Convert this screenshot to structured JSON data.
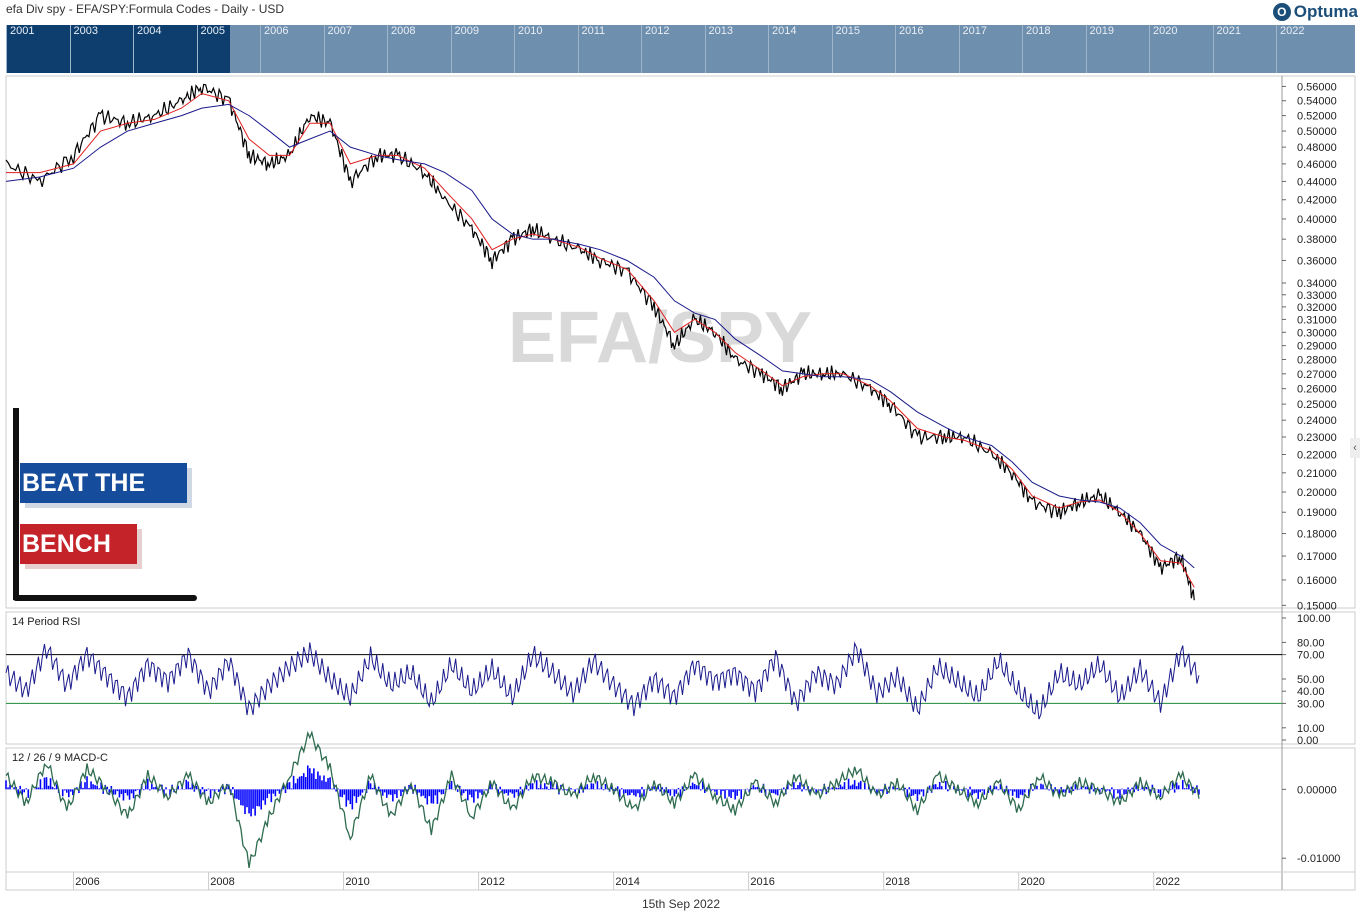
{
  "header": {
    "title": "efa Div spy -   EFA/SPY:Formula Codes - Daily - USD"
  },
  "logo": {
    "text": "Optuma",
    "glyph": "O"
  },
  "navigator": {
    "years": [
      "2001",
      "2003",
      "2004",
      "2005",
      "2006",
      "2007",
      "2008",
      "2009",
      "2010",
      "2011",
      "2012",
      "2013",
      "2014",
      "2015",
      "2016",
      "2017",
      "2018",
      "2019",
      "2020",
      "2021",
      "2022"
    ]
  },
  "watermark": "EFA/SPY",
  "branding": {
    "line1": "BEAT THE",
    "line2": "BENCH"
  },
  "footer_date": "15th Sep 2022",
  "colors": {
    "price": "#000000",
    "ma_fast": "#e02020",
    "ma_slow": "#1a1a8c",
    "rsi": "#1a1a8c",
    "macd_hist": "#0000ff",
    "macd_line": "#2e6b4f",
    "navigator_selected": "#0d3e6e",
    "navigator_bg": "#6f8fae"
  },
  "chart_data": [
    {
      "type": "line",
      "title": "EFA/SPY",
      "scale": "log",
      "ylim": [
        0.15,
        0.57
      ],
      "y_ticks": [
        "0.56000",
        "0.54000",
        "0.52000",
        "0.50000",
        "0.48000",
        "0.46000",
        "0.44000",
        "0.42000",
        "0.40000",
        "0.38000",
        "0.36000",
        "0.34000",
        "0.33000",
        "0.32000",
        "0.31000",
        "0.30000",
        "0.29000",
        "0.28000",
        "0.27000",
        "0.26000",
        "0.25000",
        "0.24000",
        "0.23000",
        "0.22000",
        "0.21000",
        "0.20000",
        "0.19000",
        "0.18000",
        "0.17000",
        "0.16000",
        "0.15000"
      ],
      "x": [
        2005.0,
        2005.5,
        2006.0,
        2006.4,
        2006.8,
        2007.2,
        2007.6,
        2007.9,
        2008.3,
        2008.6,
        2008.9,
        2009.2,
        2009.5,
        2009.8,
        2010.1,
        2010.5,
        2010.8,
        2011.2,
        2011.5,
        2011.9,
        2012.2,
        2012.5,
        2012.8,
        2013.1,
        2013.5,
        2013.8,
        2014.2,
        2014.6,
        2014.9,
        2015.2,
        2015.5,
        2015.8,
        2016.2,
        2016.5,
        2016.8,
        2017.1,
        2017.4,
        2017.8,
        2018.1,
        2018.5,
        2018.9,
        2019.2,
        2019.6,
        2019.9,
        2020.2,
        2020.6,
        2020.9,
        2021.2,
        2021.5,
        2021.8,
        2022.1,
        2022.4,
        2022.6
      ],
      "series": [
        {
          "name": "",
          "values": [
            0.46,
            0.44,
            0.47,
            0.52,
            0.51,
            0.52,
            0.54,
            0.56,
            0.54,
            0.47,
            0.46,
            0.47,
            0.52,
            0.51,
            0.44,
            0.47,
            0.47,
            0.45,
            0.42,
            0.39,
            0.36,
            0.38,
            0.39,
            0.38,
            0.37,
            0.36,
            0.35,
            0.32,
            0.29,
            0.31,
            0.3,
            0.28,
            0.27,
            0.26,
            0.27,
            0.27,
            0.27,
            0.26,
            0.25,
            0.23,
            0.23,
            0.23,
            0.22,
            0.21,
            0.195,
            0.19,
            0.195,
            0.198,
            0.19,
            0.18,
            0.165,
            0.17,
            0.152
          ]
        },
        {
          "name": "",
          "values": [
            0.45,
            0.45,
            0.46,
            0.5,
            0.51,
            0.515,
            0.53,
            0.55,
            0.54,
            0.49,
            0.47,
            0.47,
            0.51,
            0.51,
            0.46,
            0.47,
            0.47,
            0.455,
            0.43,
            0.4,
            0.37,
            0.38,
            0.385,
            0.38,
            0.372,
            0.362,
            0.352,
            0.325,
            0.3,
            0.31,
            0.3,
            0.285,
            0.272,
            0.262,
            0.268,
            0.27,
            0.27,
            0.262,
            0.252,
            0.235,
            0.23,
            0.228,
            0.222,
            0.212,
            0.198,
            0.192,
            0.195,
            0.196,
            0.19,
            0.18,
            0.168,
            0.167,
            0.157
          ]
        },
        {
          "name": "",
          "values": [
            0.44,
            0.445,
            0.455,
            0.48,
            0.5,
            0.51,
            0.52,
            0.53,
            0.535,
            0.52,
            0.5,
            0.48,
            0.49,
            0.5,
            0.48,
            0.47,
            0.465,
            0.46,
            0.45,
            0.43,
            0.4,
            0.385,
            0.38,
            0.38,
            0.375,
            0.37,
            0.36,
            0.345,
            0.325,
            0.315,
            0.31,
            0.295,
            0.282,
            0.272,
            0.27,
            0.268,
            0.268,
            0.266,
            0.258,
            0.245,
            0.236,
            0.23,
            0.225,
            0.216,
            0.205,
            0.198,
            0.196,
            0.195,
            0.192,
            0.185,
            0.175,
            0.17,
            0.165
          ]
        }
      ]
    },
    {
      "type": "line",
      "title": "14 Period RSI",
      "ylim": [
        0,
        100
      ],
      "y_ticks": [
        "100.00",
        "80.00",
        "70.00",
        "50.00",
        "40.00",
        "30.00",
        "10.00",
        "0.00"
      ],
      "levels": [
        70,
        30
      ],
      "x": [
        2005.0,
        2005.3,
        2005.6,
        2005.9,
        2006.2,
        2006.5,
        2006.8,
        2007.1,
        2007.4,
        2007.7,
        2008.0,
        2008.3,
        2008.6,
        2008.9,
        2009.2,
        2009.5,
        2009.8,
        2010.1,
        2010.4,
        2010.7,
        2011.0,
        2011.3,
        2011.6,
        2011.9,
        2012.2,
        2012.5,
        2012.8,
        2013.1,
        2013.4,
        2013.7,
        2014.0,
        2014.3,
        2014.6,
        2014.9,
        2015.2,
        2015.5,
        2015.8,
        2016.1,
        2016.4,
        2016.7,
        2017.0,
        2017.3,
        2017.6,
        2017.9,
        2018.2,
        2018.5,
        2018.8,
        2019.1,
        2019.4,
        2019.7,
        2020.0,
        2020.3,
        2020.6,
        2020.9,
        2021.2,
        2021.5,
        2021.8,
        2022.1,
        2022.4,
        2022.7
      ],
      "series": [
        {
          "name": "",
          "values": [
            55,
            40,
            75,
            45,
            70,
            52,
            35,
            62,
            48,
            70,
            40,
            65,
            25,
            45,
            60,
            72,
            50,
            35,
            68,
            45,
            55,
            30,
            62,
            40,
            58,
            35,
            70,
            55,
            38,
            65,
            45,
            28,
            50,
            35,
            62,
            48,
            55,
            40,
            68,
            30,
            55,
            45,
            75,
            38,
            52,
            25,
            60,
            48,
            35,
            65,
            40,
            22,
            55,
            45,
            62,
            35,
            58,
            30,
            72,
            50
          ]
        }
      ]
    },
    {
      "type": "line",
      "title": "12 / 26 / 9 MACD-C",
      "ylim": [
        -0.012,
        0.006
      ],
      "y_ticks": [
        "0.00000",
        "-0.01000"
      ],
      "x": [
        2005.0,
        2005.3,
        2005.6,
        2005.9,
        2006.2,
        2006.5,
        2006.8,
        2007.1,
        2007.4,
        2007.7,
        2008.0,
        2008.3,
        2008.6,
        2008.9,
        2009.2,
        2009.5,
        2009.8,
        2010.1,
        2010.4,
        2010.7,
        2011.0,
        2011.3,
        2011.6,
        2011.9,
        2012.2,
        2012.5,
        2012.8,
        2013.1,
        2013.4,
        2013.7,
        2014.0,
        2014.3,
        2014.6,
        2014.9,
        2015.2,
        2015.5,
        2015.8,
        2016.1,
        2016.4,
        2016.7,
        2017.0,
        2017.3,
        2017.6,
        2017.9,
        2018.2,
        2018.5,
        2018.8,
        2019.1,
        2019.4,
        2019.7,
        2020.0,
        2020.3,
        2020.6,
        2020.9,
        2021.2,
        2021.5,
        2021.8,
        2022.1,
        2022.4,
        2022.7
      ],
      "series": [
        {
          "name": "",
          "values": [
            0.002,
            -0.002,
            0.004,
            -0.003,
            0.003,
            0.0,
            -0.004,
            0.002,
            -0.001,
            0.002,
            -0.002,
            0.001,
            -0.011,
            -0.004,
            0.002,
            0.008,
            0.003,
            -0.007,
            0.002,
            -0.004,
            0.001,
            -0.006,
            0.002,
            -0.004,
            0.001,
            -0.003,
            0.002,
            0.001,
            -0.001,
            0.002,
            0.0,
            -0.003,
            0.001,
            -0.002,
            0.002,
            -0.001,
            -0.003,
            0.001,
            -0.002,
            0.002,
            -0.001,
            0.001,
            0.003,
            -0.001,
            0.001,
            -0.003,
            0.002,
            0.0,
            -0.002,
            0.001,
            -0.003,
            0.002,
            -0.001,
            0.001,
            0.0,
            -0.002,
            0.001,
            -0.001,
            0.002,
            -0.001
          ]
        }
      ]
    }
  ],
  "x_axis": {
    "ticks": [
      "2006",
      "2008",
      "2010",
      "2012",
      "2014",
      "2016",
      "2018",
      "2020",
      "2022"
    ]
  }
}
